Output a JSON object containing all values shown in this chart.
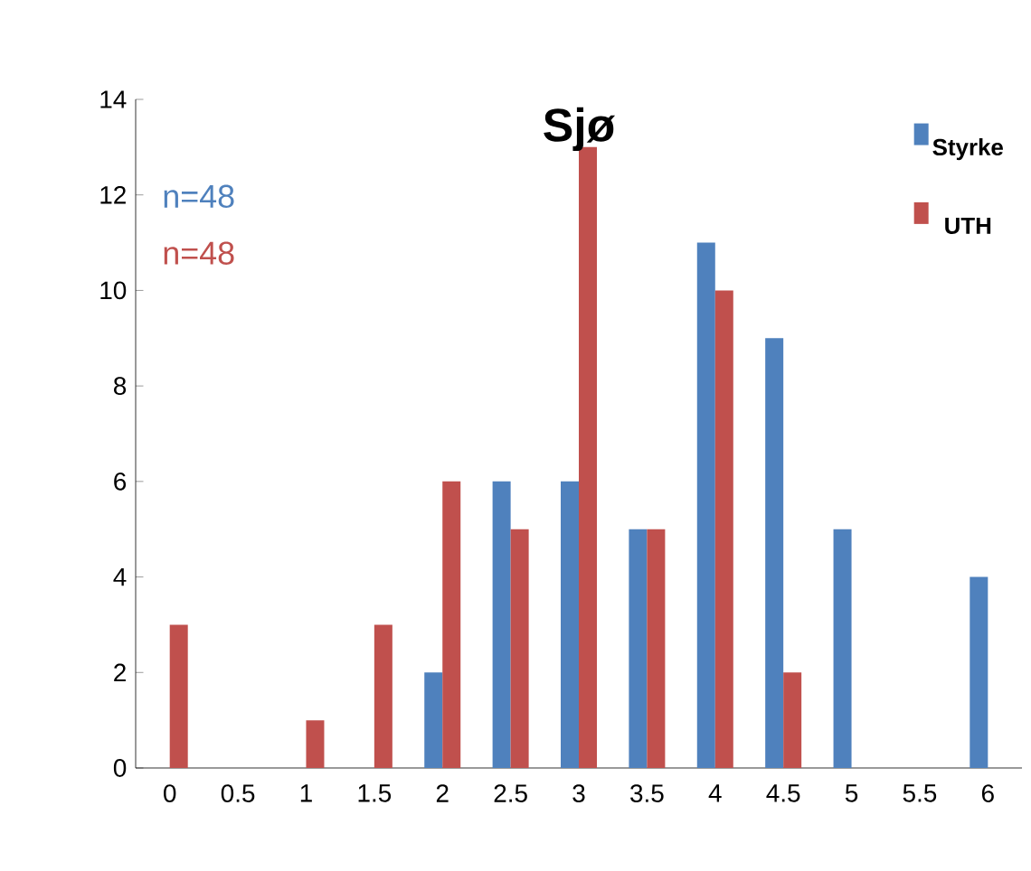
{
  "chart_data": {
    "type": "bar",
    "title": "Sjø",
    "categories": [
      "0",
      "0.5",
      "1",
      "1.5",
      "2",
      "2.5",
      "3",
      "3.5",
      "4",
      "4.5",
      "5",
      "5.5",
      "6"
    ],
    "series": [
      {
        "name": "Styrke",
        "color": "#4f81bd",
        "values": [
          0,
          0,
          0,
          0,
          2,
          6,
          6,
          5,
          11,
          9,
          5,
          0,
          4
        ]
      },
      {
        "name": "UTH",
        "color": "#c0504d",
        "values": [
          3,
          0,
          1,
          3,
          6,
          5,
          13,
          5,
          10,
          2,
          0,
          0,
          0
        ]
      }
    ],
    "annotations": [
      "n=48",
      "n=48"
    ],
    "ylim": [
      0,
      14
    ],
    "yticks": [
      0,
      2,
      4,
      6,
      8,
      10,
      12,
      14
    ],
    "grid": false,
    "legend": "top right"
  }
}
